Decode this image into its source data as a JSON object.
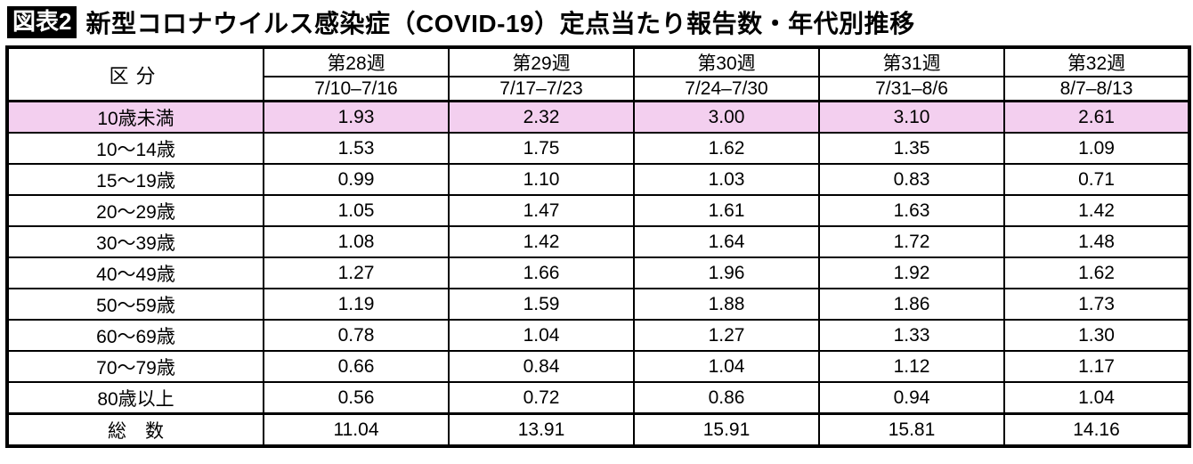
{
  "title": {
    "badge": "図表2",
    "text": "新型コロナウイルス感染症（COVID-19）定点当たり報告数・年代別推移"
  },
  "colors": {
    "highlight_row": "#F3CFEF",
    "border": "#000000",
    "badge_bg": "#000000",
    "badge_text": "#FFFFFF"
  },
  "table": {
    "corner_label": "区分",
    "columns": [
      {
        "week": "第28週",
        "dates": "7/10–7/16"
      },
      {
        "week": "第29週",
        "dates": "7/17–7/23"
      },
      {
        "week": "第30週",
        "dates": "7/24–7/30"
      },
      {
        "week": "第31週",
        "dates": "7/31–8/6"
      },
      {
        "week": "第32週",
        "dates": "8/7–8/13"
      }
    ],
    "rows": [
      {
        "label": "10歳未満",
        "values": [
          "1.93",
          "2.32",
          "3.00",
          "3.10",
          "2.61"
        ],
        "highlight": true
      },
      {
        "label": "10～14歳",
        "values": [
          "1.53",
          "1.75",
          "1.62",
          "1.35",
          "1.09"
        ],
        "highlight": false
      },
      {
        "label": "15～19歳",
        "values": [
          "0.99",
          "1.10",
          "1.03",
          "0.83",
          "0.71"
        ],
        "highlight": false
      },
      {
        "label": "20～29歳",
        "values": [
          "1.05",
          "1.47",
          "1.61",
          "1.63",
          "1.42"
        ],
        "highlight": false
      },
      {
        "label": "30～39歳",
        "values": [
          "1.08",
          "1.42",
          "1.64",
          "1.72",
          "1.48"
        ],
        "highlight": false
      },
      {
        "label": "40～49歳",
        "values": [
          "1.27",
          "1.66",
          "1.96",
          "1.92",
          "1.62"
        ],
        "highlight": false
      },
      {
        "label": "50～59歳",
        "values": [
          "1.19",
          "1.59",
          "1.88",
          "1.86",
          "1.73"
        ],
        "highlight": false
      },
      {
        "label": "60～69歳",
        "values": [
          "0.78",
          "1.04",
          "1.27",
          "1.33",
          "1.30"
        ],
        "highlight": false
      },
      {
        "label": "70～79歳",
        "values": [
          "0.66",
          "0.84",
          "1.04",
          "1.12",
          "1.17"
        ],
        "highlight": false
      },
      {
        "label": "80歳以上",
        "values": [
          "0.56",
          "0.72",
          "0.86",
          "0.94",
          "1.04"
        ],
        "highlight": false
      }
    ],
    "total_row": {
      "label": "総　数",
      "values": [
        "11.04",
        "13.91",
        "15.91",
        "15.81",
        "14.16"
      ]
    }
  },
  "chart_data": {
    "type": "table",
    "title": "新型コロナウイルス感染症（COVID-19）定点当たり報告数・年代別推移",
    "row_header": "区分",
    "columns": [
      "第28週 7/10–7/16",
      "第29週 7/17–7/23",
      "第30週 7/24–7/30",
      "第31週 7/31–8/6",
      "第32週 8/7–8/13"
    ],
    "series": [
      {
        "name": "10歳未満",
        "values": [
          1.93,
          2.32,
          3.0,
          3.1,
          2.61
        ]
      },
      {
        "name": "10～14歳",
        "values": [
          1.53,
          1.75,
          1.62,
          1.35,
          1.09
        ]
      },
      {
        "name": "15～19歳",
        "values": [
          0.99,
          1.1,
          1.03,
          0.83,
          0.71
        ]
      },
      {
        "name": "20～29歳",
        "values": [
          1.05,
          1.47,
          1.61,
          1.63,
          1.42
        ]
      },
      {
        "name": "30～39歳",
        "values": [
          1.08,
          1.42,
          1.64,
          1.72,
          1.48
        ]
      },
      {
        "name": "40～49歳",
        "values": [
          1.27,
          1.66,
          1.96,
          1.92,
          1.62
        ]
      },
      {
        "name": "50～59歳",
        "values": [
          1.19,
          1.59,
          1.88,
          1.86,
          1.73
        ]
      },
      {
        "name": "60～69歳",
        "values": [
          0.78,
          1.04,
          1.27,
          1.33,
          1.3
        ]
      },
      {
        "name": "70～79歳",
        "values": [
          0.66,
          0.84,
          1.04,
          1.12,
          1.17
        ]
      },
      {
        "name": "80歳以上",
        "values": [
          0.56,
          0.72,
          0.86,
          0.94,
          1.04
        ]
      },
      {
        "name": "総数",
        "values": [
          11.04,
          13.91,
          15.91,
          15.81,
          14.16
        ]
      }
    ]
  }
}
